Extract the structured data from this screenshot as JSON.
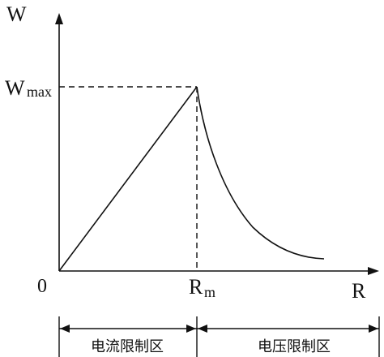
{
  "labels": {
    "y_axis": "W",
    "x_axis": "R",
    "origin": "0",
    "w_max_base": "W",
    "w_max_sub": "max",
    "r_m_base": "R",
    "r_m_sub": "m"
  },
  "regions": {
    "left": "电流限制区",
    "right": "电压限制区"
  }
}
